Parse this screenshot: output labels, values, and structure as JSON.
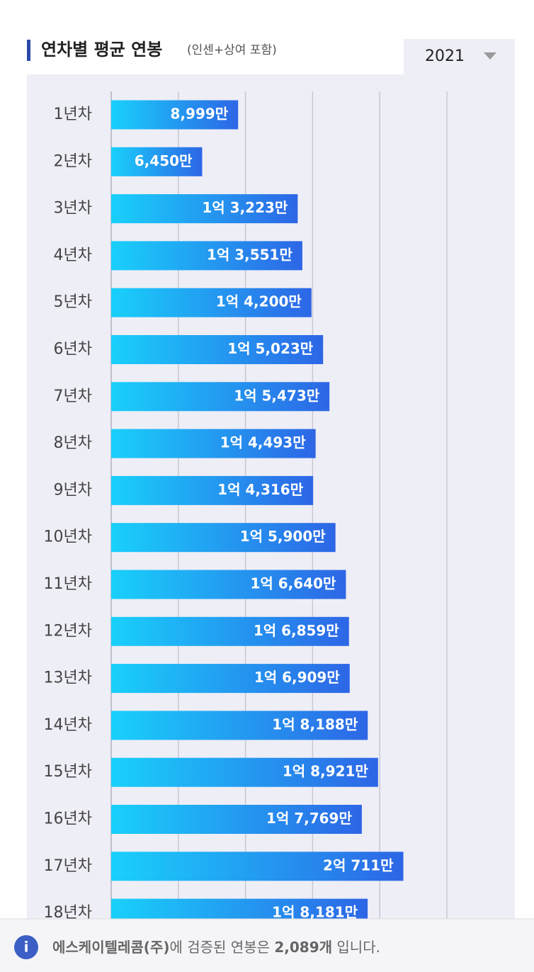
{
  "chart_data": {
    "type": "hbar",
    "title": "연차별 평균 연봉",
    "subtitle": "(인센+상여 포함)",
    "selected_year": "2021",
    "categories": [
      "1년차",
      "2년차",
      "3년차",
      "4년차",
      "5년차",
      "6년차",
      "7년차",
      "8년차",
      "9년차",
      "10년차",
      "11년차",
      "12년차",
      "13년차",
      "14년차",
      "15년차",
      "16년차",
      "17년차",
      "18년차"
    ],
    "values": [
      8999,
      6450,
      13223,
      13551,
      14200,
      15023,
      15473,
      14493,
      14316,
      15900,
      16640,
      16859,
      16909,
      18188,
      18921,
      17769,
      20711,
      18181
    ],
    "value_labels": [
      "8,999만",
      "6,450만",
      "1억 3,223만",
      "1억 3,551만",
      "1억 4,200만",
      "1억 5,023만",
      "1억 5,473만",
      "1억 4,493만",
      "1억 4,316만",
      "1억 5,900만",
      "1억 6,640만",
      "1억 6,859만",
      "1억 6,909만",
      "1억 8,188만",
      "1억 8,921만",
      "1억 7,769만",
      "2억 711만",
      "1억 8,181만"
    ],
    "colors": [
      "#19d0fb",
      "#2d66e6"
    ],
    "xlim": [
      0,
      24000
    ],
    "grid": true
  },
  "footer": {
    "company": "에스케이텔레콤(주)",
    "text": "에 검증된 연봉은 ",
    "count": "2,089개",
    "suffix": " 입니다."
  }
}
